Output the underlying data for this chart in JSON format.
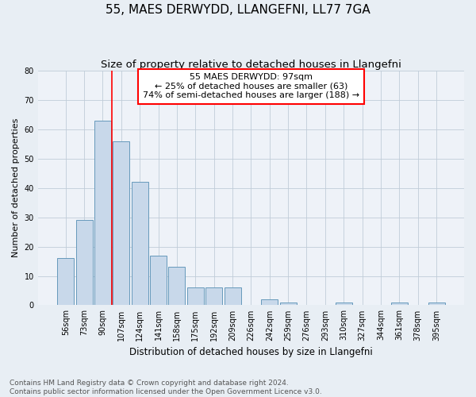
{
  "title": "55, MAES DERWYDD, LLANGEFNI, LL77 7GA",
  "subtitle": "Size of property relative to detached houses in Llangefni",
  "xlabel": "Distribution of detached houses by size in Llangefni",
  "ylabel": "Number of detached properties",
  "bar_color": "#c8d8ea",
  "bar_edge_color": "#6699bb",
  "categories": [
    "56sqm",
    "73sqm",
    "90sqm",
    "107sqm",
    "124sqm",
    "141sqm",
    "158sqm",
    "175sqm",
    "192sqm",
    "209sqm",
    "226sqm",
    "242sqm",
    "259sqm",
    "276sqm",
    "293sqm",
    "310sqm",
    "327sqm",
    "344sqm",
    "361sqm",
    "378sqm",
    "395sqm"
  ],
  "values": [
    16,
    29,
    63,
    56,
    42,
    17,
    13,
    6,
    6,
    6,
    0,
    2,
    1,
    0,
    0,
    1,
    0,
    0,
    1,
    0,
    1
  ],
  "ylim": [
    0,
    80
  ],
  "yticks": [
    0,
    10,
    20,
    30,
    40,
    50,
    60,
    70,
    80
  ],
  "annotation_text_line1": "55 MAES DERWYDD: 97sqm",
  "annotation_text_line2": "← 25% of detached houses are smaller (63)",
  "annotation_text_line3": "74% of semi-detached houses are larger (188) →",
  "red_line_x": 2.5,
  "footer_line1": "Contains HM Land Registry data © Crown copyright and database right 2024.",
  "footer_line2": "Contains public sector information licensed under the Open Government Licence v3.0.",
  "background_color": "#e8eef4",
  "plot_background_color": "#eef2f8",
  "grid_color": "#c0ccd8",
  "title_fontsize": 11,
  "subtitle_fontsize": 9.5,
  "annotation_fontsize": 8,
  "tick_fontsize": 7,
  "ylabel_fontsize": 8,
  "xlabel_fontsize": 8.5,
  "footer_fontsize": 6.5
}
